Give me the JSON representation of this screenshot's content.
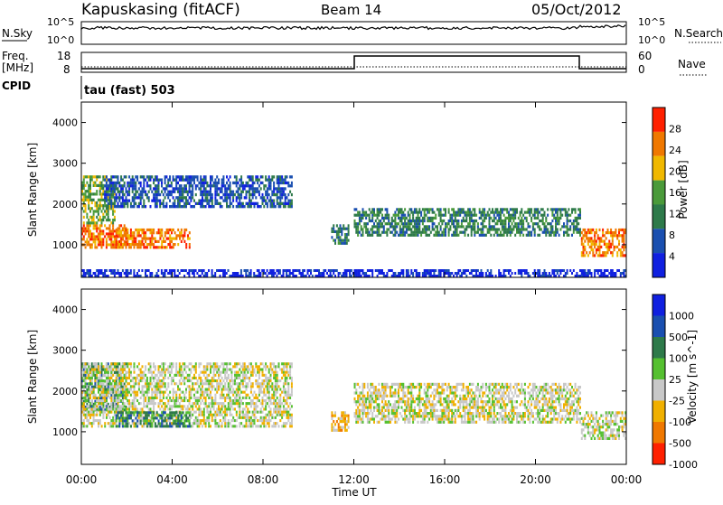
{
  "header": {
    "station": "Kapuskasing (fitACF)",
    "beam": "Beam 14",
    "date": "05/Oct/2012"
  },
  "noise_panel": {
    "left_label": "N.Sky",
    "right_label": "N.Search",
    "top_tick": "10^5",
    "bottom_tick": "10^0",
    "right_top_tick": "10^5",
    "right_bottom_tick": "10^0"
  },
  "freq_panel": {
    "left_label_1": "Freq.",
    "left_label_2": "[MHz]",
    "right_label": "Nave",
    "left_top_tick": "18",
    "left_bottom_tick": "8",
    "right_top_tick": "60",
    "right_bottom_tick": "0"
  },
  "cpid_panel": {
    "label": "CPID",
    "value": "tau (fast) 503"
  },
  "colors": {
    "power_scale": [
      "#1020e0",
      "#1a4fb0",
      "#2e7a4a",
      "#4a9a3a",
      "#f0b800",
      "#f07800",
      "#ff2000"
    ],
    "velocity_scale": [
      "#1020e0",
      "#1a4fb0",
      "#2e7a4a",
      "#55c030",
      "#c8c8c8",
      "#f0b000",
      "#f07800",
      "#ff2000"
    ],
    "ground_scatter": "#c8c8c8"
  },
  "chart_data": [
    {
      "type": "heatmap",
      "name": "power",
      "ylabel": "Slant Range [km]",
      "yticks": [
        "1000",
        "2000",
        "3000",
        "4000"
      ],
      "ylim": [
        200,
        4500
      ],
      "xlim_hours": [
        0,
        24
      ],
      "colorbar_label": "Power [dB]",
      "colorbar_ticks": [
        "4",
        "8",
        "12",
        "16",
        "20",
        "24",
        "28"
      ],
      "bands": [
        {
          "t0": 0.0,
          "t1": 2.0,
          "r0": 900,
          "r1": 1500,
          "level": 5
        },
        {
          "t0": 0.0,
          "t1": 1.5,
          "r0": 1500,
          "r1": 2700,
          "level": 3
        },
        {
          "t0": 1.5,
          "t1": 4.8,
          "r0": 900,
          "r1": 1400,
          "level": 5
        },
        {
          "t0": 1.0,
          "t1": 9.3,
          "r0": 1900,
          "r1": 2700,
          "level": 1
        },
        {
          "t0": 11.0,
          "t1": 11.8,
          "r0": 1000,
          "r1": 1500,
          "level": 2
        },
        {
          "t0": 12.0,
          "t1": 22.0,
          "r0": 1200,
          "r1": 1900,
          "level": 2
        },
        {
          "t0": 22.0,
          "t1": 24.0,
          "r0": 700,
          "r1": 1400,
          "level": 5
        },
        {
          "t0": 0.0,
          "t1": 24.0,
          "r0": 200,
          "r1": 400,
          "level": 0
        }
      ]
    },
    {
      "type": "heatmap",
      "name": "velocity",
      "ylabel": "Slant Range [km]",
      "yticks": [
        "1000",
        "2000",
        "3000",
        "4000"
      ],
      "ylim": [
        200,
        4500
      ],
      "xlim_hours": [
        0,
        24
      ],
      "xlabel": "Time UT",
      "xticks": [
        "00:00",
        "04:00",
        "08:00",
        "12:00",
        "16:00",
        "20:00",
        "00:00"
      ],
      "colorbar_label": "Velocity [m s^-1]",
      "colorbar_ticks": [
        "1000",
        "500",
        "100",
        "25",
        "-25",
        "-100",
        "-500",
        "-1000"
      ],
      "bands": [
        {
          "t0": 0.0,
          "t1": 2.0,
          "r0": 1500,
          "r1": 2700,
          "level": 2
        },
        {
          "t0": 0.0,
          "t1": 9.3,
          "r0": 1100,
          "r1": 2700,
          "level": 4
        },
        {
          "t0": 1.5,
          "t1": 4.8,
          "r0": 1100,
          "r1": 1500,
          "level": 2
        },
        {
          "t0": 11.0,
          "t1": 11.8,
          "r0": 1000,
          "r1": 1500,
          "level": 5
        },
        {
          "t0": 12.0,
          "t1": 22.0,
          "r0": 1200,
          "r1": 2200,
          "level": 4
        },
        {
          "t0": 22.0,
          "t1": 24.0,
          "r0": 800,
          "r1": 1500,
          "level": 4
        }
      ]
    }
  ]
}
